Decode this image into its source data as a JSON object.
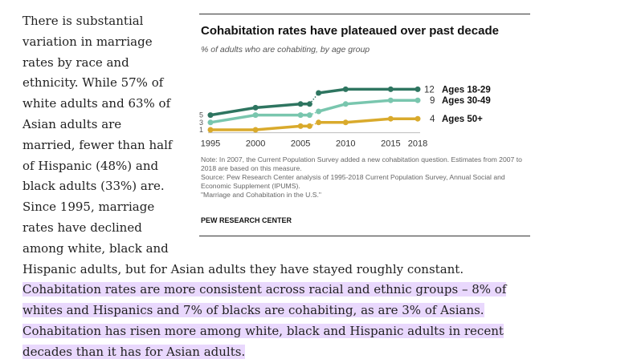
{
  "text": {
    "intro": "There is substantial variation in marriage rates by race and ethnicity. While 57% of white adults and 63% of Asian adults are married, fewer than half of Hispanic (48%) and black adults (33%) are. Since 1995, marriage rates have declined among white, black and Hispanic adults, but for Asian adults they have stayed roughly constant. ",
    "highlighted": "Cohabitation rates are more consistent across racial and ethnic groups – 8% of whites and Hispanics and 7% of blacks are cohabiting, as are 3% of Asians. Cohabitation has risen more among white, black and Hispanic adults in recent decades than it has for Asian adults."
  },
  "chart": {
    "title": "Cohabitation rates have plateaued over past decade",
    "subtitle": "% of adults who are cohabiting, by age group",
    "note": "Note: In 2007, the Current Population Survey added a new cohabitation question. Estimates from 2007 to 2018 are based on this measure.",
    "source": "Source: Pew Research Center analysis of 1995-2018 Current Population Survey, Annual Social and Economic Supplement (IPUMS).",
    "report": "\"Marriage and Cohabitation in the U.S.\"",
    "brand": "PEW RESEARCH CENTER"
  },
  "chart_data": {
    "type": "line",
    "title": "Cohabitation rates have plateaued over past decade",
    "subtitle": "% of adults who are cohabiting, by age group",
    "x": [
      1995,
      2000,
      2005,
      2006,
      2007,
      2010,
      2015,
      2018
    ],
    "xticks": [
      "1995",
      "2000",
      "2005",
      "2010",
      "2015",
      "2018"
    ],
    "break_between": [
      2006,
      2007
    ],
    "ylim": [
      0,
      13
    ],
    "series": [
      {
        "name": "Ages 18-29",
        "color": "#2e7560",
        "values": [
          5,
          7,
          8,
          8,
          11,
          12,
          12,
          12
        ],
        "end_label": "12"
      },
      {
        "name": "Ages 30-49",
        "color": "#79c6ae",
        "values": [
          3,
          5,
          5,
          5,
          6,
          8,
          9,
          9
        ],
        "end_label": "9"
      },
      {
        "name": "Ages 50+",
        "color": "#d9aa2c",
        "values": [
          1,
          1,
          2,
          2,
          3,
          3,
          4,
          4
        ],
        "end_label": "4"
      }
    ],
    "start_labels": [
      "5",
      "3",
      "1"
    ]
  }
}
